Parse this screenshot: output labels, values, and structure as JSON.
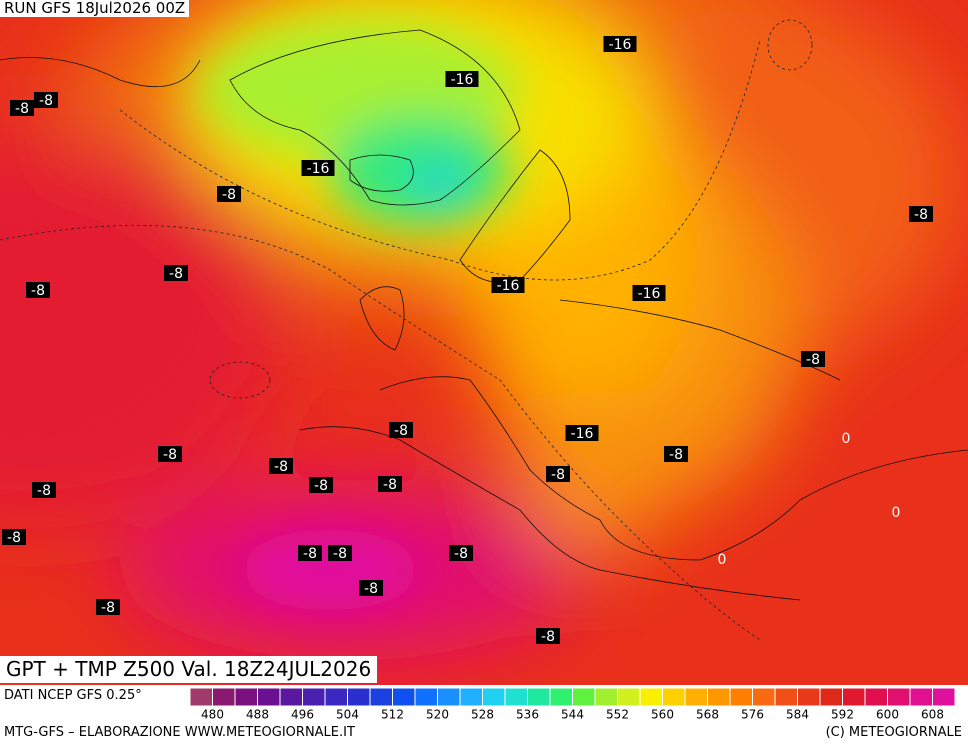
{
  "header": {
    "run": "RUN GFS 18Jul2026 00Z"
  },
  "map": {
    "title": "GPT + TMP Z500 Val. 18Z24JUL2026",
    "contour_labels": [
      -16,
      -16,
      -16,
      -16,
      -16,
      -16,
      -8,
      -8,
      -8,
      -8,
      -8,
      -8,
      -8,
      -8,
      -8,
      -8,
      -8,
      -8,
      -8,
      -8,
      -8,
      -8,
      -8,
      -8,
      -8,
      -8,
      -8,
      -8,
      0,
      0,
      0
    ]
  },
  "colorbar": {
    "source": "DATI NCEP GFS 0.25°",
    "labels": [
      480,
      488,
      496,
      504,
      512,
      520,
      528,
      536,
      544,
      552,
      560,
      568,
      576,
      584,
      592,
      600,
      608
    ],
    "colors": [
      "#a03a6a",
      "#8a1a70",
      "#7a1080",
      "#6a1090",
      "#5a18a0",
      "#4a20b0",
      "#3a28c0",
      "#2a30d0",
      "#1a40e0",
      "#1050f0",
      "#1070ff",
      "#1a90ff",
      "#20b0ff",
      "#20d0f0",
      "#20e0d0",
      "#20e8a0",
      "#30f070",
      "#60f040",
      "#a0f030",
      "#d0f020",
      "#f8f000",
      "#ffd000",
      "#ffb000",
      "#ff9800",
      "#ff8000",
      "#f86a10",
      "#f05018",
      "#e83a1a",
      "#e02818",
      "#e01830",
      "#e01050",
      "#e01070",
      "#e01090",
      "#e0109f"
    ]
  },
  "footer": {
    "left": "MTG-GFS – ELABORAZIONE WWW.METEOGIORNALE.IT",
    "right": "(C) METEOGIORNALE"
  }
}
